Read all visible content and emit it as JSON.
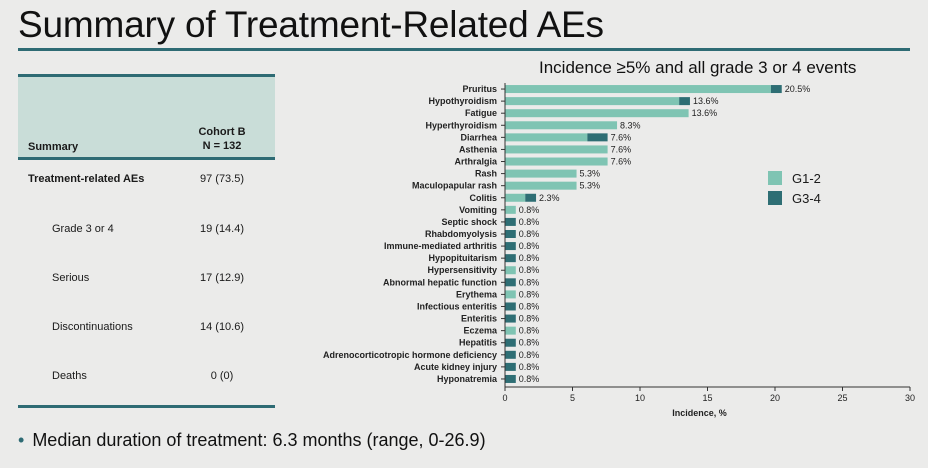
{
  "title": "Summary of Treatment-Related AEs",
  "summary_table": {
    "header_label": "Summary",
    "cohort_line1": "Cohort B",
    "cohort_line2": "N = 132",
    "rows": [
      {
        "label": "Treatment-related AEs",
        "value": "97 (73.5)"
      },
      {
        "label": "Grade 3 or 4",
        "value": "19 (14.4)"
      },
      {
        "label": "Serious",
        "value": "17 (12.9)"
      },
      {
        "label": "Discontinuations",
        "value": "14 (10.6)"
      },
      {
        "label": "Deaths",
        "value": "0 (0)"
      }
    ]
  },
  "bullet": "Median duration of treatment: 6.3 months (range, 0-26.9)",
  "colors": {
    "g12": "#7fc4b3",
    "g34": "#2e6e74",
    "rule": "#2e6b74"
  },
  "chart_data": {
    "type": "bar",
    "orientation": "horizontal",
    "stacked": true,
    "title": "Incidence ≥5% and all grade 3 or 4 events",
    "xlabel": "Incidence, %",
    "ylabel": "",
    "xlim": [
      0,
      30
    ],
    "xticks": [
      0,
      5,
      10,
      15,
      20,
      25,
      30
    ],
    "legend_position": "right",
    "categories": [
      "Pruritus",
      "Hypothyroidism",
      "Fatigue",
      "Hyperthyroidism",
      "Diarrhea",
      "Asthenia",
      "Arthralgia",
      "Rash",
      "Maculopapular rash",
      "Colitis",
      "Vomiting",
      "Septic shock",
      "Rhabdomyolysis",
      "Immune-mediated arthritis",
      "Hypopituitarism",
      "Hypersensitivity",
      "Abnormal hepatic function",
      "Erythema",
      "Infectious enteritis",
      "Enteritis",
      "Eczema",
      "Hepatitis",
      "Adrenocorticotropic hormone deficiency",
      "Acute kidney injury",
      "Hyponatremia"
    ],
    "series": [
      {
        "name": "G1-2",
        "values": [
          19.7,
          12.9,
          13.6,
          8.3,
          6.1,
          7.6,
          7.6,
          5.3,
          5.3,
          1.5,
          0.8,
          0,
          0,
          0,
          0,
          0.8,
          0,
          0.8,
          0,
          0,
          0.8,
          0,
          0,
          0,
          0
        ]
      },
      {
        "name": "G3-4",
        "values": [
          0.8,
          0.8,
          0,
          0,
          1.5,
          0,
          0,
          0,
          0,
          0.8,
          0,
          0.8,
          0.8,
          0.8,
          0.8,
          0,
          0.8,
          0,
          0.8,
          0.8,
          0,
          0.8,
          0.8,
          0.8,
          0.8
        ]
      }
    ],
    "data_labels": [
      "20.5%",
      "13.6%",
      "13.6%",
      "8.3%",
      "7.6%",
      "7.6%",
      "7.6%",
      "5.3%",
      "5.3%",
      "2.3%",
      "0.8%",
      "0.8%",
      "0.8%",
      "0.8%",
      "0.8%",
      "0.8%",
      "0.8%",
      "0.8%",
      "0.8%",
      "0.8%",
      "0.8%",
      "0.8%",
      "0.8%",
      "0.8%",
      "0.8%"
    ]
  }
}
